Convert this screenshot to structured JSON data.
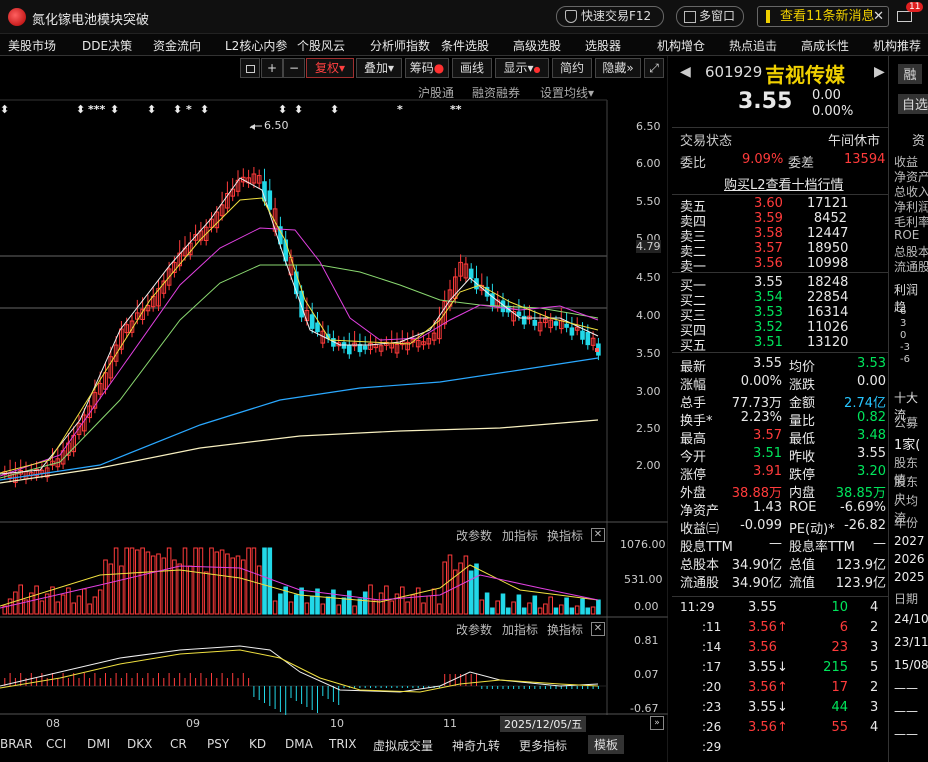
{
  "window": {
    "title": "氮化镓电池模块突破",
    "quick_trade": "快速交易F12",
    "multi_window": "多窗口",
    "news": "查看11条新消息",
    "mail_badge": "11"
  },
  "menu": [
    "美股市场",
    "DDE决策",
    "资金流向",
    "L2核心内参",
    "个股风云",
    "分析师指数",
    "条件选股",
    "高级选股",
    "选股器",
    "机构增仓",
    "热点追击",
    "高成长性",
    "机构推荐"
  ],
  "toolbar": {
    "fuquan": "复权",
    "overlay": "叠加",
    "chips": "筹码",
    "draw": "画线",
    "display": "显示",
    "simplify": "简约",
    "hide": "隐藏"
  },
  "subbar": {
    "hgt": "沪股通",
    "rzrq": "融资融券",
    "ma_settings": "设置均线"
  },
  "price_axis": [
    "6.50",
    "6.00",
    "5.50",
    "5.00",
    "4.79",
    "4.50",
    "4.00",
    "3.50",
    "3.00",
    "2.50",
    "2.00"
  ],
  "high_label": "6.50",
  "vol_axis": [
    "1076.00",
    "531.00",
    "0.00"
  ],
  "macd_axis": [
    "0.81",
    "0.07",
    "-0.67"
  ],
  "panel_buttons": {
    "params": "改参数",
    "add": "加指标",
    "switch": "换指标"
  },
  "months": [
    "08",
    "09",
    "10",
    "11"
  ],
  "date_label": "2025/12/05/五",
  "bottom_tabs": [
    "BRAR",
    "CCI",
    "DMI",
    "DKX",
    "CR",
    "PSY",
    "KD",
    "DMA",
    "TRIX",
    "虚拟成交量",
    "神奇九转",
    "更多指标",
    "模板"
  ],
  "stock": {
    "code": "601929",
    "name": "吉视传媒",
    "price": "3.55",
    "change": "0.00",
    "pct": "0.00%",
    "status_label": "交易状态",
    "status": "午间休市",
    "weibi_label": "委比",
    "weibi": "9.09%",
    "weicha_label": "委差",
    "weicha": "13594",
    "l2": "购买L2查看十档行情"
  },
  "asks": [
    {
      "l": "卖五",
      "p": "3.60",
      "v": "17121"
    },
    {
      "l": "卖四",
      "p": "3.59",
      "v": "8452"
    },
    {
      "l": "卖三",
      "p": "3.58",
      "v": "12447"
    },
    {
      "l": "卖二",
      "p": "3.57",
      "v": "18950"
    },
    {
      "l": "卖一",
      "p": "3.56",
      "v": "10998"
    }
  ],
  "bids": [
    {
      "l": "买一",
      "p": "3.55",
      "v": "18248"
    },
    {
      "l": "买二",
      "p": "3.54",
      "v": "22854"
    },
    {
      "l": "买三",
      "p": "3.53",
      "v": "16314"
    },
    {
      "l": "买四",
      "p": "3.52",
      "v": "11026"
    },
    {
      "l": "买五",
      "p": "3.51",
      "v": "13120"
    }
  ],
  "stats": [
    [
      "最新",
      "3.55",
      "wht",
      "均价",
      "3.53",
      "grn"
    ],
    [
      "涨幅",
      "0.00%",
      "wht",
      "涨跌",
      "0.00",
      "wht"
    ],
    [
      "总手",
      "77.73万",
      "wht",
      "金额",
      "2.74亿",
      "cyan"
    ],
    [
      "换手*",
      "2.23%",
      "wht",
      "量比",
      "0.82",
      "grn"
    ],
    [
      "最高",
      "3.57",
      "red",
      "最低",
      "3.48",
      "grn"
    ],
    [
      "今开",
      "3.51",
      "grn",
      "昨收",
      "3.55",
      "wht"
    ],
    [
      "涨停",
      "3.91",
      "red",
      "跌停",
      "3.20",
      "grn"
    ],
    [
      "外盘",
      "38.88万",
      "red",
      "内盘",
      "38.85万",
      "grn"
    ],
    [
      "净资产",
      "1.43",
      "wht",
      "ROE",
      "-6.69%",
      "wht"
    ],
    [
      "收益㈢",
      "-0.099",
      "wht",
      "PE(动)*",
      "-26.82",
      "wht"
    ],
    [
      "股息TTM",
      "—",
      "wht",
      "股息率TTM",
      "—",
      "wht"
    ],
    [
      "总股本",
      "34.90亿",
      "wht",
      "总值",
      "123.9亿",
      "wht"
    ],
    [
      "流通股",
      "34.90亿",
      "wht",
      "流值",
      "123.9亿",
      "wht"
    ]
  ],
  "ticks": [
    {
      "t": "11:29",
      "p": "3.55",
      "pc": "wht",
      "a": "",
      "v": "10",
      "vc": "grn",
      "n": "4"
    },
    {
      "t": ":11",
      "p": "3.56",
      "pc": "red",
      "a": "↑",
      "v": "6",
      "vc": "red",
      "n": "2"
    },
    {
      "t": ":14",
      "p": "3.56",
      "pc": "red",
      "a": "",
      "v": "23",
      "vc": "red",
      "n": "3"
    },
    {
      "t": ":17",
      "p": "3.55",
      "pc": "wht",
      "a": "↓",
      "v": "215",
      "vc": "grn",
      "n": "5"
    },
    {
      "t": ":20",
      "p": "3.56",
      "pc": "red",
      "a": "↑",
      "v": "17",
      "vc": "red",
      "n": "2"
    },
    {
      "t": ":23",
      "p": "3.55",
      "pc": "wht",
      "a": "↓",
      "v": "44",
      "vc": "grn",
      "n": "3"
    },
    {
      "t": ":26",
      "p": "3.56",
      "pc": "red",
      "a": "↑",
      "v": "55",
      "vc": "red",
      "n": "4"
    },
    {
      "t": ":29",
      "p": "",
      "pc": "wht",
      "a": "",
      "v": "",
      "vc": "wht",
      "n": ""
    }
  ],
  "far_right": {
    "btn1": "融",
    "btn2": "自选",
    "top": "资",
    "labels": [
      "收益",
      "净资产",
      "总收入",
      "净利润",
      "毛利率",
      "ROE",
      "总股本",
      "流通股"
    ],
    "profit": "利润趋",
    "axis": [
      "6",
      "3",
      "0",
      "-3",
      "-6"
    ],
    "holders": "十大流",
    "public": "公募",
    "family": "1家(",
    "gd1": "股东情",
    "gd2": "股东户",
    "avg": "人均流",
    "year_h": "年份",
    "years": [
      "2027",
      "2026",
      "2025"
    ],
    "date_h": "日期",
    "dates": [
      "24/10",
      "23/11",
      "15/08",
      "——",
      "——",
      "——"
    ]
  }
}
